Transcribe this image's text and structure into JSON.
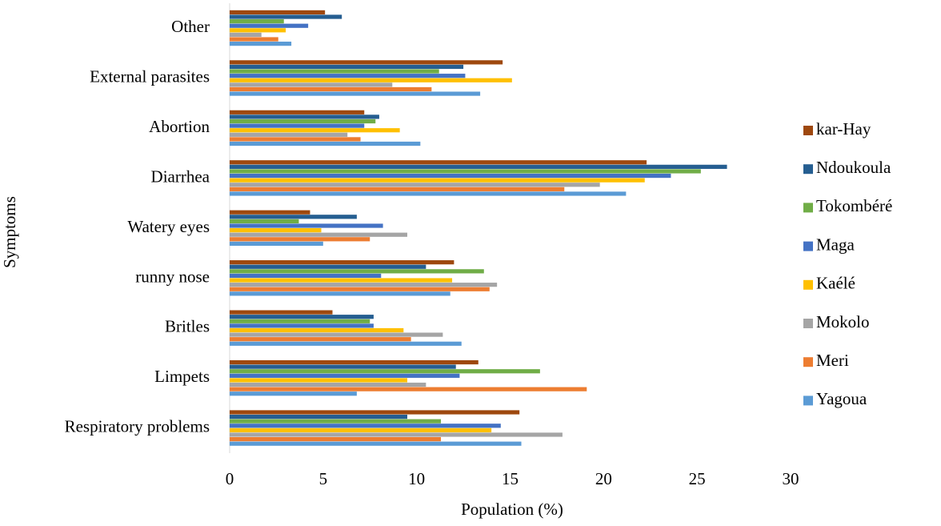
{
  "chart_data": {
    "type": "barh",
    "xlabel": "Population (%)",
    "ylabel": "Symptoms",
    "categories": [
      "Respiratory problems",
      "Limpets",
      "Britles",
      "runny nose",
      "Watery eyes",
      "Diarrhea",
      "Abortion",
      "External parasites",
      "Other"
    ],
    "xlim": [
      0,
      30
    ],
    "xticks": [
      0,
      5,
      10,
      15,
      20,
      25,
      30
    ],
    "legend": "right",
    "series": [
      {
        "name": "kar-Hay",
        "color": "#9e480e",
        "values": [
          15.5,
          13.3,
          5.5,
          12.0,
          4.3,
          22.3,
          7.2,
          14.6,
          5.1
        ]
      },
      {
        "name": "Ndoukoula",
        "color": "#255e91",
        "values": [
          9.5,
          12.1,
          7.7,
          10.5,
          6.8,
          26.6,
          8.0,
          12.5,
          6.0
        ]
      },
      {
        "name": "Tokombéré",
        "color": "#70ad47",
        "values": [
          11.3,
          16.6,
          7.5,
          13.6,
          3.7,
          25.2,
          7.8,
          11.2,
          2.9
        ]
      },
      {
        "name": "Maga",
        "color": "#4472c4",
        "values": [
          14.5,
          12.3,
          7.7,
          8.1,
          8.2,
          23.6,
          7.2,
          12.6,
          4.2
        ]
      },
      {
        "name": "Kaélé",
        "color": "#ffc000",
        "values": [
          14.0,
          9.5,
          9.3,
          11.9,
          4.9,
          22.2,
          9.1,
          15.1,
          3.0
        ]
      },
      {
        "name": "Mokolo",
        "color": "#a5a5a5",
        "values": [
          17.8,
          10.5,
          11.4,
          14.3,
          9.5,
          19.8,
          6.3,
          8.7,
          1.7
        ]
      },
      {
        "name": "Meri",
        "color": "#ed7d31",
        "values": [
          11.3,
          19.1,
          9.7,
          13.9,
          7.5,
          17.9,
          7.0,
          10.8,
          2.6
        ]
      },
      {
        "name": "Yagoua",
        "color": "#5b9bd5",
        "values": [
          15.6,
          6.8,
          12.4,
          11.8,
          5.0,
          21.2,
          10.2,
          13.4,
          3.3
        ]
      }
    ]
  }
}
